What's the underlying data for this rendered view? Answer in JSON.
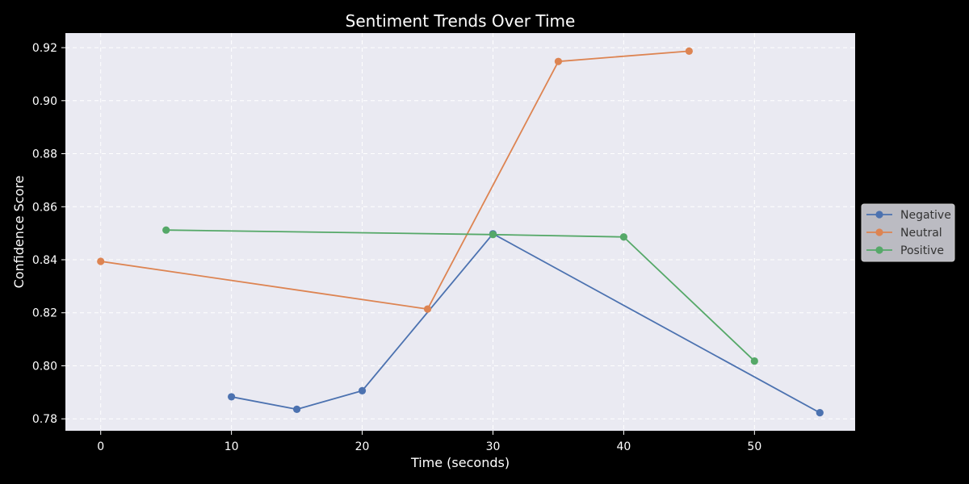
{
  "chart_data": {
    "type": "line",
    "title": "Sentiment Trends Over Time",
    "xlabel": "Time (seconds)",
    "ylabel": "Confidence Score",
    "xlim": [
      -2.7,
      57.7
    ],
    "ylim": [
      0.7755,
      0.9255
    ],
    "xticks": [
      0,
      10,
      20,
      30,
      40,
      50
    ],
    "yticks": [
      0.78,
      0.8,
      0.82,
      0.84,
      0.86,
      0.88,
      0.9,
      0.92
    ],
    "ytick_labels": [
      "0.78",
      "0.80",
      "0.82",
      "0.84",
      "0.86",
      "0.88",
      "0.90",
      "0.92"
    ],
    "grid": true,
    "legend_position": "center-right outside",
    "series": [
      {
        "name": "Negative",
        "color": "#4c72b0",
        "x": [
          10,
          15,
          20,
          30,
          55
        ],
        "y": [
          0.7883,
          0.7836,
          0.7906,
          0.8498,
          0.7823
        ]
      },
      {
        "name": "Neutral",
        "color": "#dd8452",
        "x": [
          0,
          25,
          35,
          45
        ],
        "y": [
          0.8394,
          0.8214,
          0.9148,
          0.9187
        ]
      },
      {
        "name": "Positive",
        "color": "#55a868",
        "x": [
          5,
          30,
          40,
          50
        ],
        "y": [
          0.8512,
          0.8495,
          0.8486,
          0.8018
        ]
      }
    ]
  }
}
